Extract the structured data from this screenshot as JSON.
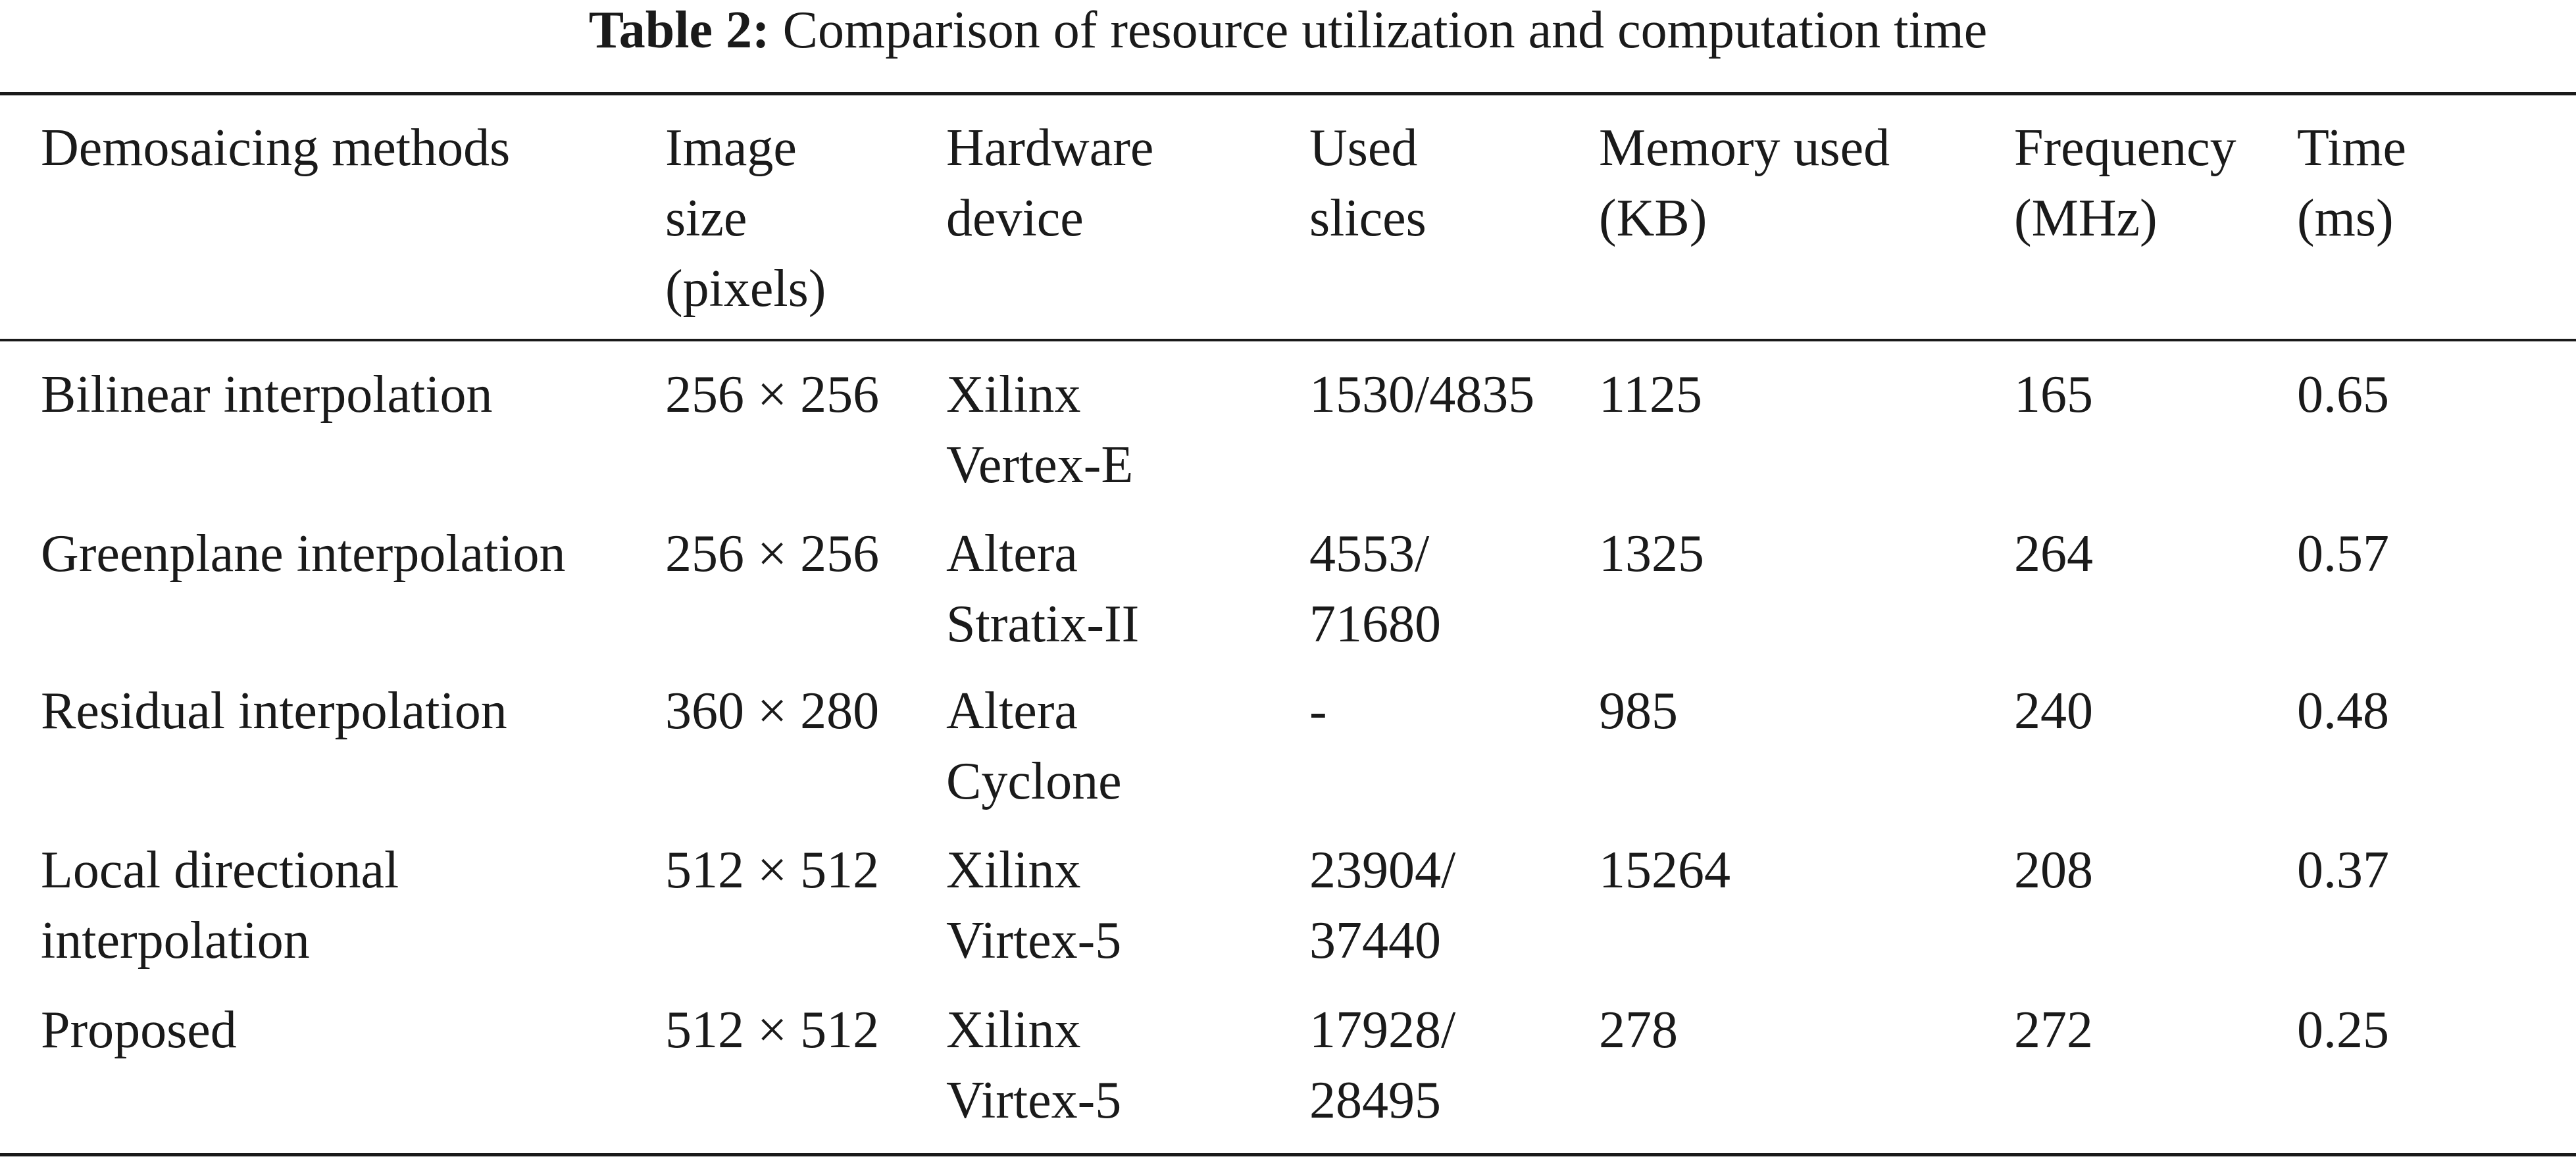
{
  "caption": {
    "label": "Table 2:",
    "text": "Comparison of resource utilization and computation time"
  },
  "table": {
    "header": [
      [
        "Demosaicing methods"
      ],
      [
        "Image",
        "size",
        "(pixels)"
      ],
      [
        "Hardware",
        "device"
      ],
      [
        "Used",
        "slices"
      ],
      [
        "Memory used",
        "(KB)"
      ],
      [
        "Frequency",
        "(MHz)"
      ],
      [
        "Time",
        "(ms)"
      ]
    ],
    "rows": [
      [
        [
          "Bilinear interpolation"
        ],
        [
          "256 × 256"
        ],
        [
          "Xilinx",
          "Vertex-E"
        ],
        [
          "1530/4835"
        ],
        [
          "1125"
        ],
        [
          "165"
        ],
        [
          "0.65"
        ]
      ],
      [
        [
          "Greenplane interpolation"
        ],
        [
          "256 × 256"
        ],
        [
          "Altera",
          "Stratix-II"
        ],
        [
          "4553/",
          "71680"
        ],
        [
          "1325"
        ],
        [
          "264"
        ],
        [
          "0.57"
        ]
      ],
      [
        [
          "Residual interpolation"
        ],
        [
          "360 × 280"
        ],
        [
          "Altera",
          "Cyclone"
        ],
        [
          "-"
        ],
        [
          "985"
        ],
        [
          "240"
        ],
        [
          "0.48"
        ]
      ],
      [
        [
          "Local directional",
          "interpolation"
        ],
        [
          "512 × 512"
        ],
        [
          "Xilinx",
          "Virtex-5"
        ],
        [
          "23904/",
          "37440"
        ],
        [
          "15264"
        ],
        [
          "208"
        ],
        [
          "0.37"
        ]
      ],
      [
        [
          "Proposed"
        ],
        [
          "512 × 512"
        ],
        [
          "Xilinx",
          "Virtex-5"
        ],
        [
          "17928/",
          "28495"
        ],
        [
          "278"
        ],
        [
          "272"
        ],
        [
          "0.25"
        ]
      ]
    ]
  }
}
